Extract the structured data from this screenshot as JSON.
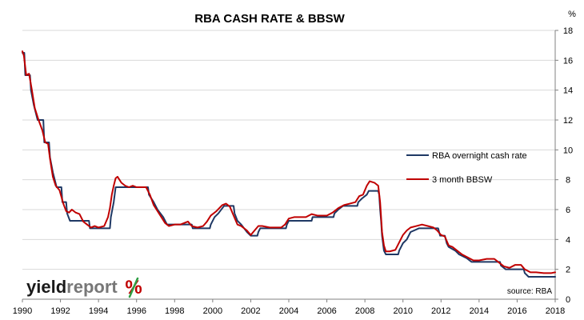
{
  "chart_data": {
    "type": "line",
    "title": "RBA CASH RATE & BBSW",
    "y_unit_label": "%",
    "xlim": [
      1990,
      2018
    ],
    "ylim": [
      0,
      18
    ],
    "x_ticks": [
      1990,
      1992,
      1994,
      1996,
      1998,
      2000,
      2002,
      2004,
      2006,
      2008,
      2010,
      2012,
      2014,
      2016,
      2018
    ],
    "y_ticks": [
      0,
      2,
      4,
      6,
      8,
      10,
      12,
      14,
      16,
      18
    ],
    "y_axis_side": "right",
    "grid": {
      "horizontal": true,
      "vertical": false
    },
    "legend_position": "center-right",
    "series": [
      {
        "name": "RBA overnight cash rate",
        "color": "#1f3864",
        "points": [
          [
            1990.0,
            16.5
          ],
          [
            1990.1,
            16.5
          ],
          [
            1990.15,
            15.0
          ],
          [
            1990.4,
            15.0
          ],
          [
            1990.45,
            14.0
          ],
          [
            1990.6,
            13.0
          ],
          [
            1990.8,
            12.0
          ],
          [
            1991.1,
            12.0
          ],
          [
            1991.15,
            10.5
          ],
          [
            1991.4,
            10.5
          ],
          [
            1991.45,
            9.5
          ],
          [
            1991.6,
            8.5
          ],
          [
            1991.8,
            7.5
          ],
          [
            1992.05,
            7.5
          ],
          [
            1992.1,
            6.5
          ],
          [
            1992.3,
            6.5
          ],
          [
            1992.35,
            5.75
          ],
          [
            1992.5,
            5.25
          ],
          [
            1993.5,
            5.25
          ],
          [
            1993.55,
            4.75
          ],
          [
            1994.6,
            4.75
          ],
          [
            1994.65,
            5.5
          ],
          [
            1994.8,
            6.5
          ],
          [
            1994.9,
            7.5
          ],
          [
            1996.6,
            7.5
          ],
          [
            1996.65,
            7.0
          ],
          [
            1996.9,
            6.5
          ],
          [
            1997.1,
            6.0
          ],
          [
            1997.4,
            5.5
          ],
          [
            1997.6,
            5.0
          ],
          [
            1998.9,
            5.0
          ],
          [
            1998.95,
            4.75
          ],
          [
            1999.85,
            4.75
          ],
          [
            1999.9,
            5.0
          ],
          [
            2000.1,
            5.5
          ],
          [
            2000.3,
            5.75
          ],
          [
            2000.6,
            6.25
          ],
          [
            2001.1,
            6.25
          ],
          [
            2001.15,
            5.75
          ],
          [
            2001.3,
            5.25
          ],
          [
            2001.5,
            5.0
          ],
          [
            2001.8,
            4.5
          ],
          [
            2002.0,
            4.25
          ],
          [
            2002.35,
            4.25
          ],
          [
            2002.4,
            4.5
          ],
          [
            2002.5,
            4.75
          ],
          [
            2003.85,
            4.75
          ],
          [
            2003.9,
            5.0
          ],
          [
            2004.0,
            5.25
          ],
          [
            2005.2,
            5.25
          ],
          [
            2005.25,
            5.5
          ],
          [
            2006.35,
            5.5
          ],
          [
            2006.4,
            5.75
          ],
          [
            2006.6,
            6.0
          ],
          [
            2006.85,
            6.25
          ],
          [
            2007.6,
            6.25
          ],
          [
            2007.65,
            6.5
          ],
          [
            2007.85,
            6.75
          ],
          [
            2008.1,
            7.0
          ],
          [
            2008.2,
            7.25
          ],
          [
            2008.7,
            7.25
          ],
          [
            2008.75,
            7.0
          ],
          [
            2008.8,
            6.0
          ],
          [
            2008.85,
            5.25
          ],
          [
            2008.9,
            4.25
          ],
          [
            2009.0,
            3.25
          ],
          [
            2009.1,
            3.0
          ],
          [
            2009.75,
            3.0
          ],
          [
            2009.8,
            3.25
          ],
          [
            2009.9,
            3.5
          ],
          [
            2010.0,
            3.75
          ],
          [
            2010.2,
            4.0
          ],
          [
            2010.3,
            4.25
          ],
          [
            2010.4,
            4.5
          ],
          [
            2010.85,
            4.75
          ],
          [
            2011.85,
            4.75
          ],
          [
            2011.9,
            4.5
          ],
          [
            2011.95,
            4.25
          ],
          [
            2012.2,
            4.25
          ],
          [
            2012.3,
            3.75
          ],
          [
            2012.4,
            3.5
          ],
          [
            2012.75,
            3.25
          ],
          [
            2012.95,
            3.0
          ],
          [
            2013.35,
            2.75
          ],
          [
            2013.6,
            2.5
          ],
          [
            2015.1,
            2.5
          ],
          [
            2015.15,
            2.25
          ],
          [
            2015.4,
            2.0
          ],
          [
            2016.35,
            2.0
          ],
          [
            2016.4,
            1.75
          ],
          [
            2016.6,
            1.5
          ],
          [
            2018.0,
            1.5
          ]
        ]
      },
      {
        "name": "3 month BBSW",
        "color": "#c00000",
        "points": [
          [
            1990.0,
            16.6
          ],
          [
            1990.08,
            16.3
          ],
          [
            1990.2,
            15.0
          ],
          [
            1990.35,
            15.1
          ],
          [
            1990.5,
            14.0
          ],
          [
            1990.65,
            12.8
          ],
          [
            1990.85,
            12.0
          ],
          [
            1991.05,
            11.3
          ],
          [
            1991.2,
            10.5
          ],
          [
            1991.35,
            10.4
          ],
          [
            1991.45,
            9.4
          ],
          [
            1991.6,
            8.2
          ],
          [
            1991.75,
            7.6
          ],
          [
            1991.95,
            7.3
          ],
          [
            1992.15,
            6.4
          ],
          [
            1992.3,
            5.9
          ],
          [
            1992.45,
            5.8
          ],
          [
            1992.6,
            6.0
          ],
          [
            1992.8,
            5.8
          ],
          [
            1993.0,
            5.7
          ],
          [
            1993.2,
            5.2
          ],
          [
            1993.4,
            5.0
          ],
          [
            1993.6,
            4.8
          ],
          [
            1993.8,
            4.9
          ],
          [
            1994.0,
            4.8
          ],
          [
            1994.3,
            4.9
          ],
          [
            1994.5,
            5.5
          ],
          [
            1994.6,
            6.1
          ],
          [
            1994.7,
            7.0
          ],
          [
            1994.8,
            7.6
          ],
          [
            1994.9,
            8.1
          ],
          [
            1995.0,
            8.2
          ],
          [
            1995.2,
            7.8
          ],
          [
            1995.4,
            7.6
          ],
          [
            1995.6,
            7.5
          ],
          [
            1995.8,
            7.6
          ],
          [
            1996.0,
            7.5
          ],
          [
            1996.3,
            7.5
          ],
          [
            1996.5,
            7.5
          ],
          [
            1996.7,
            7.0
          ],
          [
            1996.9,
            6.3
          ],
          [
            1997.1,
            5.9
          ],
          [
            1997.3,
            5.5
          ],
          [
            1997.5,
            5.1
          ],
          [
            1997.7,
            4.9
          ],
          [
            1998.0,
            5.0
          ],
          [
            1998.3,
            5.0
          ],
          [
            1998.5,
            5.1
          ],
          [
            1998.7,
            5.2
          ],
          [
            1998.9,
            4.9
          ],
          [
            1999.2,
            4.8
          ],
          [
            1999.5,
            4.9
          ],
          [
            1999.7,
            5.2
          ],
          [
            1999.9,
            5.6
          ],
          [
            2000.2,
            5.9
          ],
          [
            2000.5,
            6.3
          ],
          [
            2000.7,
            6.4
          ],
          [
            2000.9,
            6.2
          ],
          [
            2001.1,
            5.6
          ],
          [
            2001.3,
            5.0
          ],
          [
            2001.5,
            4.9
          ],
          [
            2001.8,
            4.6
          ],
          [
            2002.0,
            4.3
          ],
          [
            2002.2,
            4.6
          ],
          [
            2002.4,
            4.9
          ],
          [
            2002.6,
            4.9
          ],
          [
            2003.0,
            4.8
          ],
          [
            2003.3,
            4.8
          ],
          [
            2003.6,
            4.8
          ],
          [
            2003.8,
            5.0
          ],
          [
            2004.0,
            5.4
          ],
          [
            2004.3,
            5.5
          ],
          [
            2004.6,
            5.5
          ],
          [
            2004.9,
            5.5
          ],
          [
            2005.2,
            5.7
          ],
          [
            2005.5,
            5.6
          ],
          [
            2005.8,
            5.6
          ],
          [
            2006.0,
            5.6
          ],
          [
            2006.3,
            5.8
          ],
          [
            2006.6,
            6.1
          ],
          [
            2006.9,
            6.3
          ],
          [
            2007.2,
            6.4
          ],
          [
            2007.5,
            6.5
          ],
          [
            2007.7,
            6.9
          ],
          [
            2007.9,
            7.0
          ],
          [
            2008.1,
            7.6
          ],
          [
            2008.25,
            7.9
          ],
          [
            2008.5,
            7.8
          ],
          [
            2008.7,
            7.6
          ],
          [
            2008.8,
            6.5
          ],
          [
            2008.9,
            4.5
          ],
          [
            2009.0,
            3.6
          ],
          [
            2009.1,
            3.2
          ],
          [
            2009.3,
            3.2
          ],
          [
            2009.6,
            3.3
          ],
          [
            2009.8,
            3.8
          ],
          [
            2010.0,
            4.3
          ],
          [
            2010.2,
            4.6
          ],
          [
            2010.4,
            4.8
          ],
          [
            2010.7,
            4.9
          ],
          [
            2011.0,
            5.0
          ],
          [
            2011.3,
            4.9
          ],
          [
            2011.6,
            4.8
          ],
          [
            2011.8,
            4.6
          ],
          [
            2012.0,
            4.3
          ],
          [
            2012.2,
            4.2
          ],
          [
            2012.4,
            3.6
          ],
          [
            2012.6,
            3.5
          ],
          [
            2012.9,
            3.2
          ],
          [
            2013.1,
            3.0
          ],
          [
            2013.4,
            2.8
          ],
          [
            2013.7,
            2.6
          ],
          [
            2014.0,
            2.6
          ],
          [
            2014.4,
            2.7
          ],
          [
            2014.8,
            2.7
          ],
          [
            2015.0,
            2.5
          ],
          [
            2015.3,
            2.2
          ],
          [
            2015.6,
            2.1
          ],
          [
            2015.9,
            2.3
          ],
          [
            2016.2,
            2.3
          ],
          [
            2016.4,
            2.0
          ],
          [
            2016.7,
            1.8
          ],
          [
            2017.0,
            1.8
          ],
          [
            2017.4,
            1.75
          ],
          [
            2017.8,
            1.75
          ],
          [
            2018.0,
            1.8
          ]
        ]
      }
    ],
    "annotations": {
      "source": "source: RBA"
    }
  },
  "logo": {
    "word_part1": "yield",
    "word_part2": "report",
    "symbol": "%",
    "colors": {
      "part1": "#1a1a1a",
      "part2": "#777777",
      "slash_green": "#2e9e44",
      "circle_red": "#c00000"
    }
  }
}
